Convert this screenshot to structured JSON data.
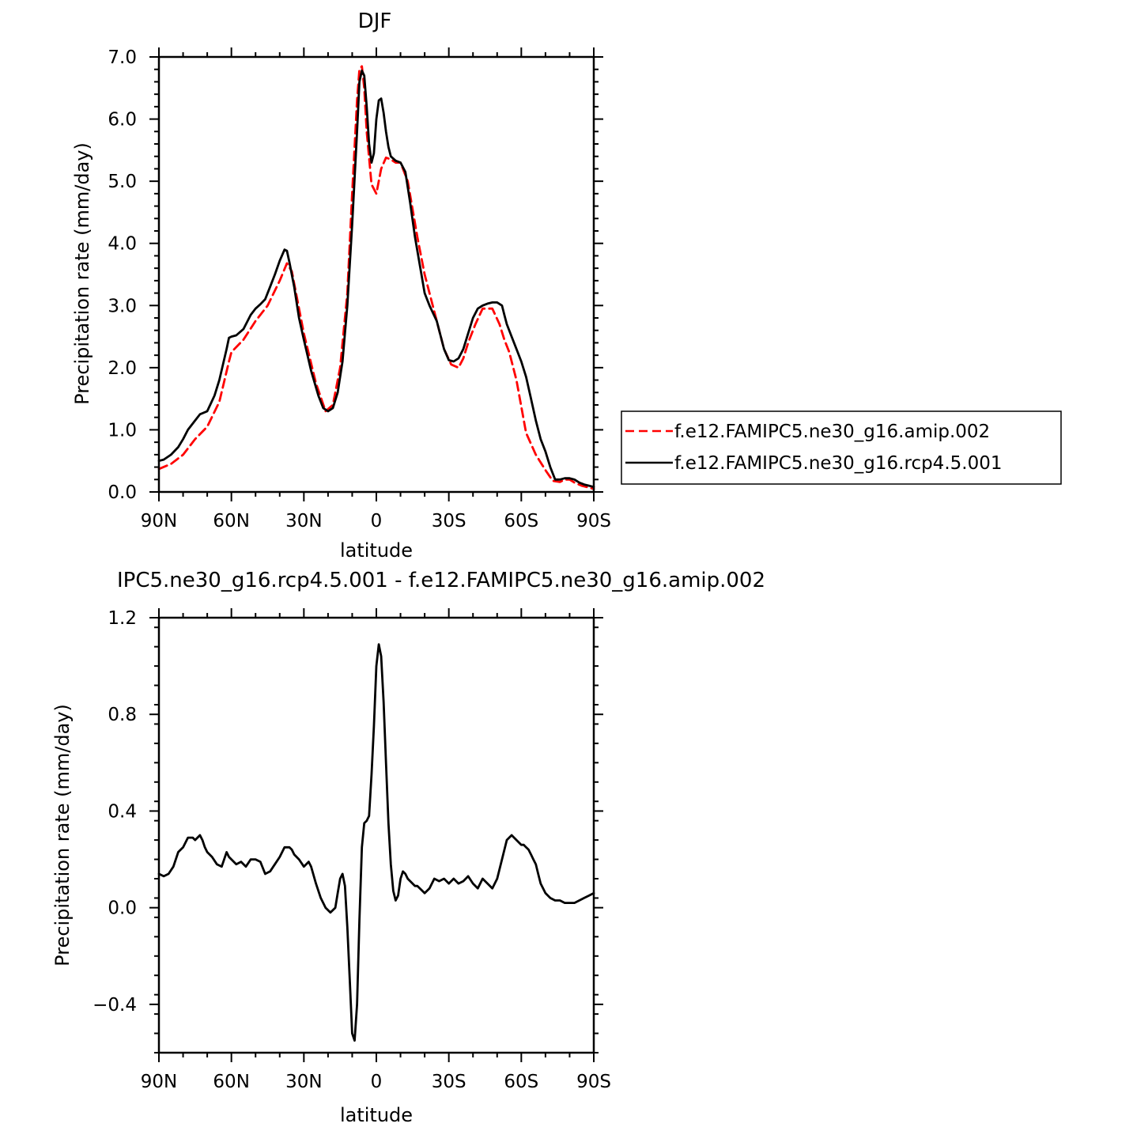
{
  "panels": [
    {
      "title": "DJF",
      "ylabel": "Precipitation rate (mm/day)",
      "xlabel": "latitude",
      "x_tick_labels": [
        "90N",
        "60N",
        "30N",
        "0",
        "30S",
        "60S",
        "90S"
      ],
      "y_tick_labels": [
        "0.0",
        "1.0",
        "2.0",
        "3.0",
        "4.0",
        "5.0",
        "6.0",
        "7.0"
      ],
      "legend": [
        {
          "label": "f.e12.FAMIPC5.ne30_g16.amip.002",
          "color": "#ff0000",
          "style": "dashed"
        },
        {
          "label": "f.e12.FAMIPC5.ne30_g16.rcp4.5.001",
          "color": "#000000",
          "style": "solid"
        }
      ]
    },
    {
      "title": "IPC5.ne30_g16.rcp4.5.001 - f.e12.FAMIPC5.ne30_g16.amip.002",
      "ylabel": "Precipitation rate (mm/day)",
      "xlabel": "latitude",
      "x_tick_labels": [
        "90N",
        "60N",
        "30N",
        "0",
        "30S",
        "60S",
        "90S"
      ],
      "y_tick_labels": [
        "-0.4",
        "0.0",
        "0.4",
        "0.8",
        "1.2"
      ]
    }
  ],
  "chart_data": [
    {
      "type": "line",
      "title": "DJF",
      "xlabel": "latitude",
      "ylabel": "Precipitation rate (mm/day)",
      "x_axis_note": "latitude from 90N (left) to 90S (right); positive = N",
      "xlim": [
        90,
        -90
      ],
      "ylim": [
        0,
        7
      ],
      "grid": false,
      "legend_position": "outside-right",
      "series": [
        {
          "name": "f.e12.FAMIPC5.ne30_g16.amip.002",
          "color": "#ff0000",
          "style": "dashed",
          "x": [
            90,
            85,
            80,
            75,
            70,
            65,
            61,
            60,
            55,
            50,
            45,
            40,
            37,
            35,
            30,
            25,
            21,
            18,
            15,
            12,
            10,
            8,
            7,
            6,
            5,
            4,
            2,
            0,
            -2,
            -4,
            -6,
            -8,
            -10,
            -13,
            -17,
            -20,
            -25,
            -28,
            -31,
            -34,
            -36,
            -38,
            -41,
            -44,
            -48,
            -51,
            -53,
            -55,
            -58,
            -62,
            -66,
            -70,
            -73,
            -76,
            -78,
            -80,
            -82,
            -85,
            -88,
            -90
          ],
          "y": [
            0.37,
            0.45,
            0.6,
            0.85,
            1.05,
            1.45,
            2.1,
            2.25,
            2.45,
            2.75,
            3.0,
            3.4,
            3.68,
            3.55,
            2.55,
            1.75,
            1.3,
            1.4,
            2.0,
            3.2,
            4.8,
            6.3,
            6.8,
            6.85,
            6.5,
            5.8,
            4.95,
            4.8,
            5.2,
            5.38,
            5.35,
            5.3,
            5.3,
            5.0,
            4.1,
            3.5,
            2.75,
            2.3,
            2.05,
            2.0,
            2.15,
            2.4,
            2.7,
            2.95,
            2.95,
            2.7,
            2.45,
            2.25,
            1.8,
            0.95,
            0.6,
            0.35,
            0.18,
            0.16,
            0.2,
            0.2,
            0.15,
            0.1,
            0.07,
            0.05
          ]
        },
        {
          "name": "f.e12.FAMIPC5.ne30_g16.rcp4.5.001",
          "color": "#000000",
          "style": "solid",
          "x": [
            90,
            88,
            85,
            82,
            80,
            78,
            75,
            73,
            70,
            67,
            65,
            62,
            61,
            60,
            58,
            55,
            52,
            50,
            48,
            46,
            44,
            42,
            40,
            38,
            37,
            36,
            34,
            32,
            30,
            27,
            24,
            22,
            20,
            18,
            16,
            14,
            12,
            10,
            8,
            7,
            6,
            5,
            4,
            3,
            2,
            1,
            0,
            -1,
            -2,
            -3,
            -4,
            -5,
            -6,
            -8,
            -10,
            -12,
            -14,
            -16,
            -18,
            -20,
            -22,
            -25,
            -28,
            -30,
            -32,
            -34,
            -36,
            -38,
            -40,
            -42,
            -44,
            -46,
            -48,
            -50,
            -52,
            -53,
            -54,
            -56,
            -58,
            -60,
            -62,
            -64,
            -66,
            -68,
            -70,
            -72,
            -74,
            -76,
            -78,
            -80,
            -82,
            -84,
            -86,
            -88,
            -90
          ],
          "y": [
            0.5,
            0.52,
            0.6,
            0.72,
            0.85,
            1.0,
            1.15,
            1.25,
            1.3,
            1.55,
            1.8,
            2.3,
            2.48,
            2.5,
            2.52,
            2.62,
            2.85,
            2.95,
            3.02,
            3.1,
            3.3,
            3.5,
            3.72,
            3.9,
            3.88,
            3.7,
            3.3,
            2.8,
            2.45,
            1.95,
            1.55,
            1.35,
            1.3,
            1.35,
            1.6,
            2.1,
            3.0,
            4.3,
            5.8,
            6.6,
            6.78,
            6.7,
            6.2,
            5.6,
            5.3,
            5.45,
            6.0,
            6.3,
            6.33,
            6.1,
            5.8,
            5.55,
            5.4,
            5.33,
            5.3,
            5.15,
            4.65,
            4.1,
            3.65,
            3.2,
            3.0,
            2.75,
            2.3,
            2.12,
            2.1,
            2.15,
            2.3,
            2.55,
            2.8,
            2.95,
            3.0,
            3.03,
            3.05,
            3.05,
            3.0,
            2.85,
            2.7,
            2.5,
            2.3,
            2.1,
            1.85,
            1.5,
            1.15,
            0.85,
            0.65,
            0.4,
            0.2,
            0.2,
            0.22,
            0.22,
            0.2,
            0.15,
            0.12,
            0.1,
            0.08
          ]
        }
      ]
    },
    {
      "type": "line",
      "title": "IPC5.ne30_g16.rcp4.5.001 - f.e12.FAMIPC5.ne30_g16.amip.002",
      "xlabel": "latitude",
      "ylabel": "Precipitation rate (mm/day)",
      "x_axis_note": "latitude from 90N (left) to 90S (right); positive = N",
      "xlim": [
        90,
        -90
      ],
      "ylim": [
        -0.6,
        1.2
      ],
      "grid": false,
      "series": [
        {
          "color": "#000000",
          "style": "solid",
          "x": [
            90,
            88,
            86,
            84,
            82,
            80,
            78,
            76,
            75,
            73,
            72,
            71,
            70,
            68,
            66,
            64,
            63,
            62,
            61,
            60,
            58,
            56,
            54,
            52,
            50,
            48,
            46,
            44,
            42,
            40,
            38,
            36,
            35,
            34,
            32,
            30,
            28,
            27,
            25,
            23,
            21,
            19,
            17,
            16,
            15,
            14,
            13,
            12,
            11,
            10,
            9,
            8,
            7,
            6,
            5,
            4,
            3,
            2,
            1,
            0,
            -1,
            -2,
            -3,
            -4,
            -5,
            -6,
            -7,
            -8,
            -9,
            -10,
            -11,
            -12,
            -13,
            -14,
            -15,
            -16,
            -17,
            -18,
            -19,
            -20,
            -22,
            -24,
            -26,
            -28,
            -30,
            -32,
            -34,
            -36,
            -38,
            -40,
            -42,
            -44,
            -46,
            -48,
            -50,
            -52,
            -54,
            -56,
            -57,
            -58,
            -59,
            -60,
            -61,
            -62,
            -63,
            -64,
            -65,
            -66,
            -67,
            -68,
            -70,
            -72,
            -74,
            -76,
            -78,
            -80,
            -82,
            -84,
            -86,
            -88,
            -90
          ],
          "y": [
            0.14,
            0.13,
            0.14,
            0.17,
            0.23,
            0.25,
            0.29,
            0.29,
            0.28,
            0.3,
            0.28,
            0.25,
            0.23,
            0.21,
            0.18,
            0.17,
            0.2,
            0.23,
            0.21,
            0.2,
            0.18,
            0.19,
            0.17,
            0.2,
            0.2,
            0.19,
            0.14,
            0.15,
            0.18,
            0.21,
            0.25,
            0.25,
            0.24,
            0.22,
            0.2,
            0.17,
            0.19,
            0.17,
            0.1,
            0.04,
            0.0,
            -0.02,
            0.0,
            0.06,
            0.12,
            0.14,
            0.09,
            -0.08,
            -0.3,
            -0.52,
            -0.55,
            -0.4,
            -0.05,
            0.25,
            0.35,
            0.36,
            0.38,
            0.55,
            0.75,
            1.0,
            1.09,
            1.04,
            0.85,
            0.6,
            0.35,
            0.18,
            0.07,
            0.03,
            0.05,
            0.12,
            0.15,
            0.14,
            0.12,
            0.11,
            0.1,
            0.09,
            0.09,
            0.08,
            0.07,
            0.06,
            0.08,
            0.12,
            0.11,
            0.12,
            0.1,
            0.12,
            0.1,
            0.11,
            0.13,
            0.1,
            0.08,
            0.12,
            0.1,
            0.08,
            0.12,
            0.2,
            0.28,
            0.3,
            0.29,
            0.28,
            0.27,
            0.26,
            0.26,
            0.25,
            0.24,
            0.22,
            0.2,
            0.18,
            0.14,
            0.1,
            0.06,
            0.04,
            0.03,
            0.03,
            0.02,
            0.02,
            0.02,
            0.03,
            0.04,
            0.05,
            0.06
          ]
        }
      ]
    }
  ]
}
